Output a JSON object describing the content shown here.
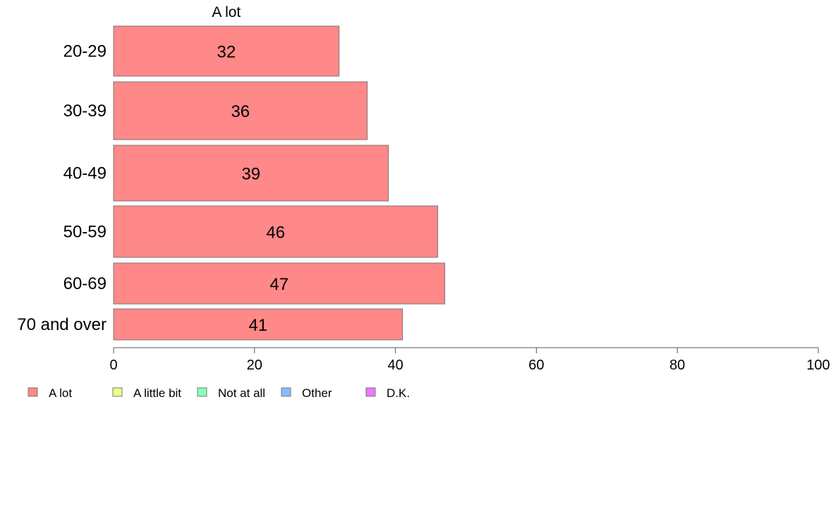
{
  "chart_data": {
    "type": "bar",
    "orientation": "horizontal",
    "column_title": "A lot",
    "categories": [
      "20-29",
      "30-39",
      "40-49",
      "50-59",
      "60-69",
      "70 and over"
    ],
    "series": [
      {
        "name": "A lot",
        "values": [
          32,
          36,
          39,
          46,
          47,
          41
        ],
        "color": "#ff8888"
      }
    ],
    "value_labels": [
      "32",
      "36",
      "39",
      "46",
      "47",
      "41"
    ],
    "xlim": [
      0,
      100
    ],
    "xticks": [
      0,
      20,
      40,
      60,
      80,
      100
    ],
    "xtick_labels": [
      "0",
      "20",
      "40",
      "60",
      "80",
      "100"
    ],
    "grid": false,
    "legend": {
      "placement": "bottom-left",
      "items": [
        {
          "label": "A lot",
          "color": "#ff8888"
        },
        {
          "label": "A little bit",
          "color": "#eeff88"
        },
        {
          "label": "Not at all",
          "color": "#88ffbb"
        },
        {
          "label": "Other",
          "color": "#88bbff"
        },
        {
          "label": "D.K.",
          "color": "#ee77ff"
        }
      ]
    }
  }
}
